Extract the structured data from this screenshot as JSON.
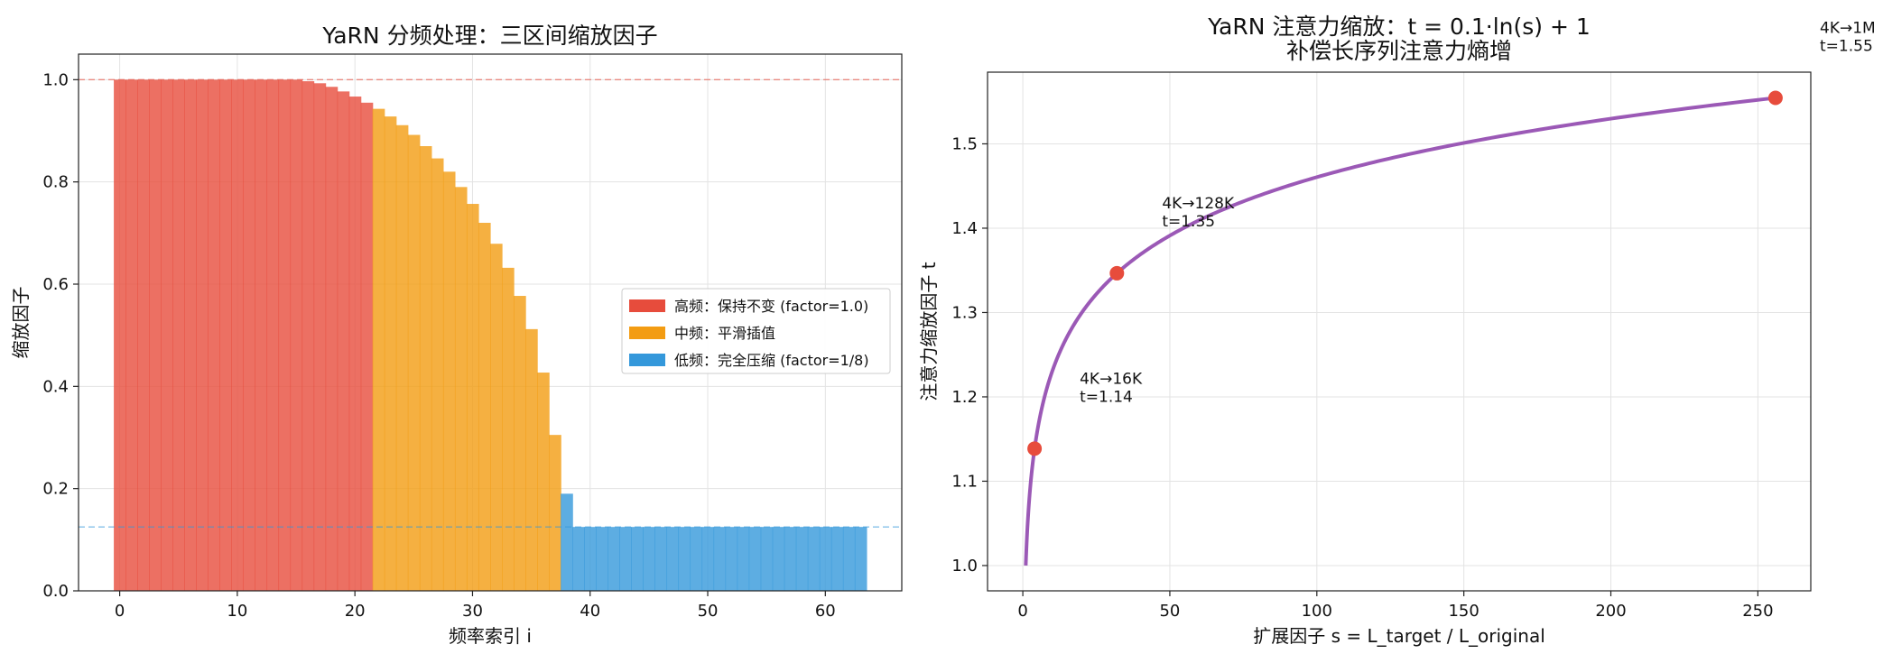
{
  "chart_data": [
    {
      "type": "bar",
      "title": "YaRN 分频处理：三区间缩放因子",
      "xlabel": "频率索引 i",
      "ylabel": "缩放因子",
      "xlim": [
        -3.5,
        66.5
      ],
      "ylim": [
        0,
        1.05
      ],
      "xticks": [
        0,
        10,
        20,
        30,
        40,
        50,
        60
      ],
      "yticks": [
        0.0,
        0.2,
        0.4,
        0.6,
        0.8,
        1.0
      ],
      "ytick_labels": [
        "0.0",
        "0.2",
        "0.4",
        "0.6",
        "0.8",
        "1.0"
      ],
      "grid": true,
      "legend_position": "center-right",
      "colors": {
        "high": "#e74c3c",
        "mid": "#f39c12",
        "low": "#3498db"
      },
      "reference_lines": [
        {
          "y": 1.0,
          "color": "#e74c3c",
          "style": "dashed"
        },
        {
          "y": 0.125,
          "color": "#3498db",
          "style": "dashed"
        }
      ],
      "series": [
        {
          "name": "高频：保持不变 (factor=1.0)",
          "key": "high",
          "x": [
            0,
            1,
            2,
            3,
            4,
            5,
            6,
            7,
            8,
            9,
            10,
            11,
            12,
            13,
            14,
            15,
            16,
            17,
            18,
            19,
            20,
            21
          ],
          "values": [
            1.0,
            1.0,
            1.0,
            1.0,
            1.0,
            1.0,
            1.0,
            1.0,
            1.0,
            1.0,
            1.0,
            1.0,
            1.0,
            1.0,
            1.0,
            1.0,
            0.997,
            0.993,
            0.986,
            0.977,
            0.967,
            0.955
          ]
        },
        {
          "name": "中频：平滑插值",
          "key": "mid",
          "x": [
            22,
            23,
            24,
            25,
            26,
            27,
            28,
            29,
            30,
            31,
            32,
            33,
            34,
            35,
            36,
            37
          ],
          "values": [
            0.943,
            0.928,
            0.911,
            0.892,
            0.87,
            0.846,
            0.82,
            0.79,
            0.757,
            0.72,
            0.679,
            0.632,
            0.577,
            0.512,
            0.427,
            0.305
          ]
        },
        {
          "name": "低频：完全压缩 (factor=1/8)",
          "key": "low",
          "x": [
            38,
            39,
            40,
            41,
            42,
            43,
            44,
            45,
            46,
            47,
            48,
            49,
            50,
            51,
            52,
            53,
            54,
            55,
            56,
            57,
            58,
            59,
            60,
            61,
            62,
            63
          ],
          "values": [
            0.19,
            0.125,
            0.125,
            0.125,
            0.125,
            0.125,
            0.125,
            0.125,
            0.125,
            0.125,
            0.125,
            0.125,
            0.125,
            0.125,
            0.125,
            0.125,
            0.125,
            0.125,
            0.125,
            0.125,
            0.125,
            0.125,
            0.125,
            0.125,
            0.125,
            0.125
          ]
        }
      ]
    },
    {
      "type": "line",
      "title": "YaRN 注意力缩放：t = 0.1·ln(s) + 1",
      "subtitle": "补偿长序列注意力熵增",
      "xlabel": "扩展因子 s = L_target / L_original",
      "ylabel": "注意力缩放因子 t",
      "xlim": [
        -12,
        268
      ],
      "ylim": [
        0.97,
        1.585
      ],
      "xticks": [
        0,
        50,
        100,
        150,
        200,
        250
      ],
      "yticks": [
        1.0,
        1.1,
        1.2,
        1.3,
        1.4,
        1.5
      ],
      "ytick_labels": [
        "1.0",
        "1.1",
        "1.2",
        "1.3",
        "1.4",
        "1.5"
      ],
      "grid": true,
      "line_color": "#9b59b6",
      "marker_color": "#e74c3c",
      "curve": {
        "formula": "t = 0.1·ln(s) + 1",
        "s_range": [
          1,
          256
        ]
      },
      "points": [
        {
          "s": 4,
          "t": 1.14,
          "label": "4K→16K",
          "value_label": "t=1.14"
        },
        {
          "s": 32,
          "t": 1.35,
          "label": "4K→128K",
          "value_label": "t=1.35"
        },
        {
          "s": 256,
          "t": 1.55,
          "label": "4K→1M",
          "value_label": "t=1.55"
        }
      ]
    }
  ]
}
